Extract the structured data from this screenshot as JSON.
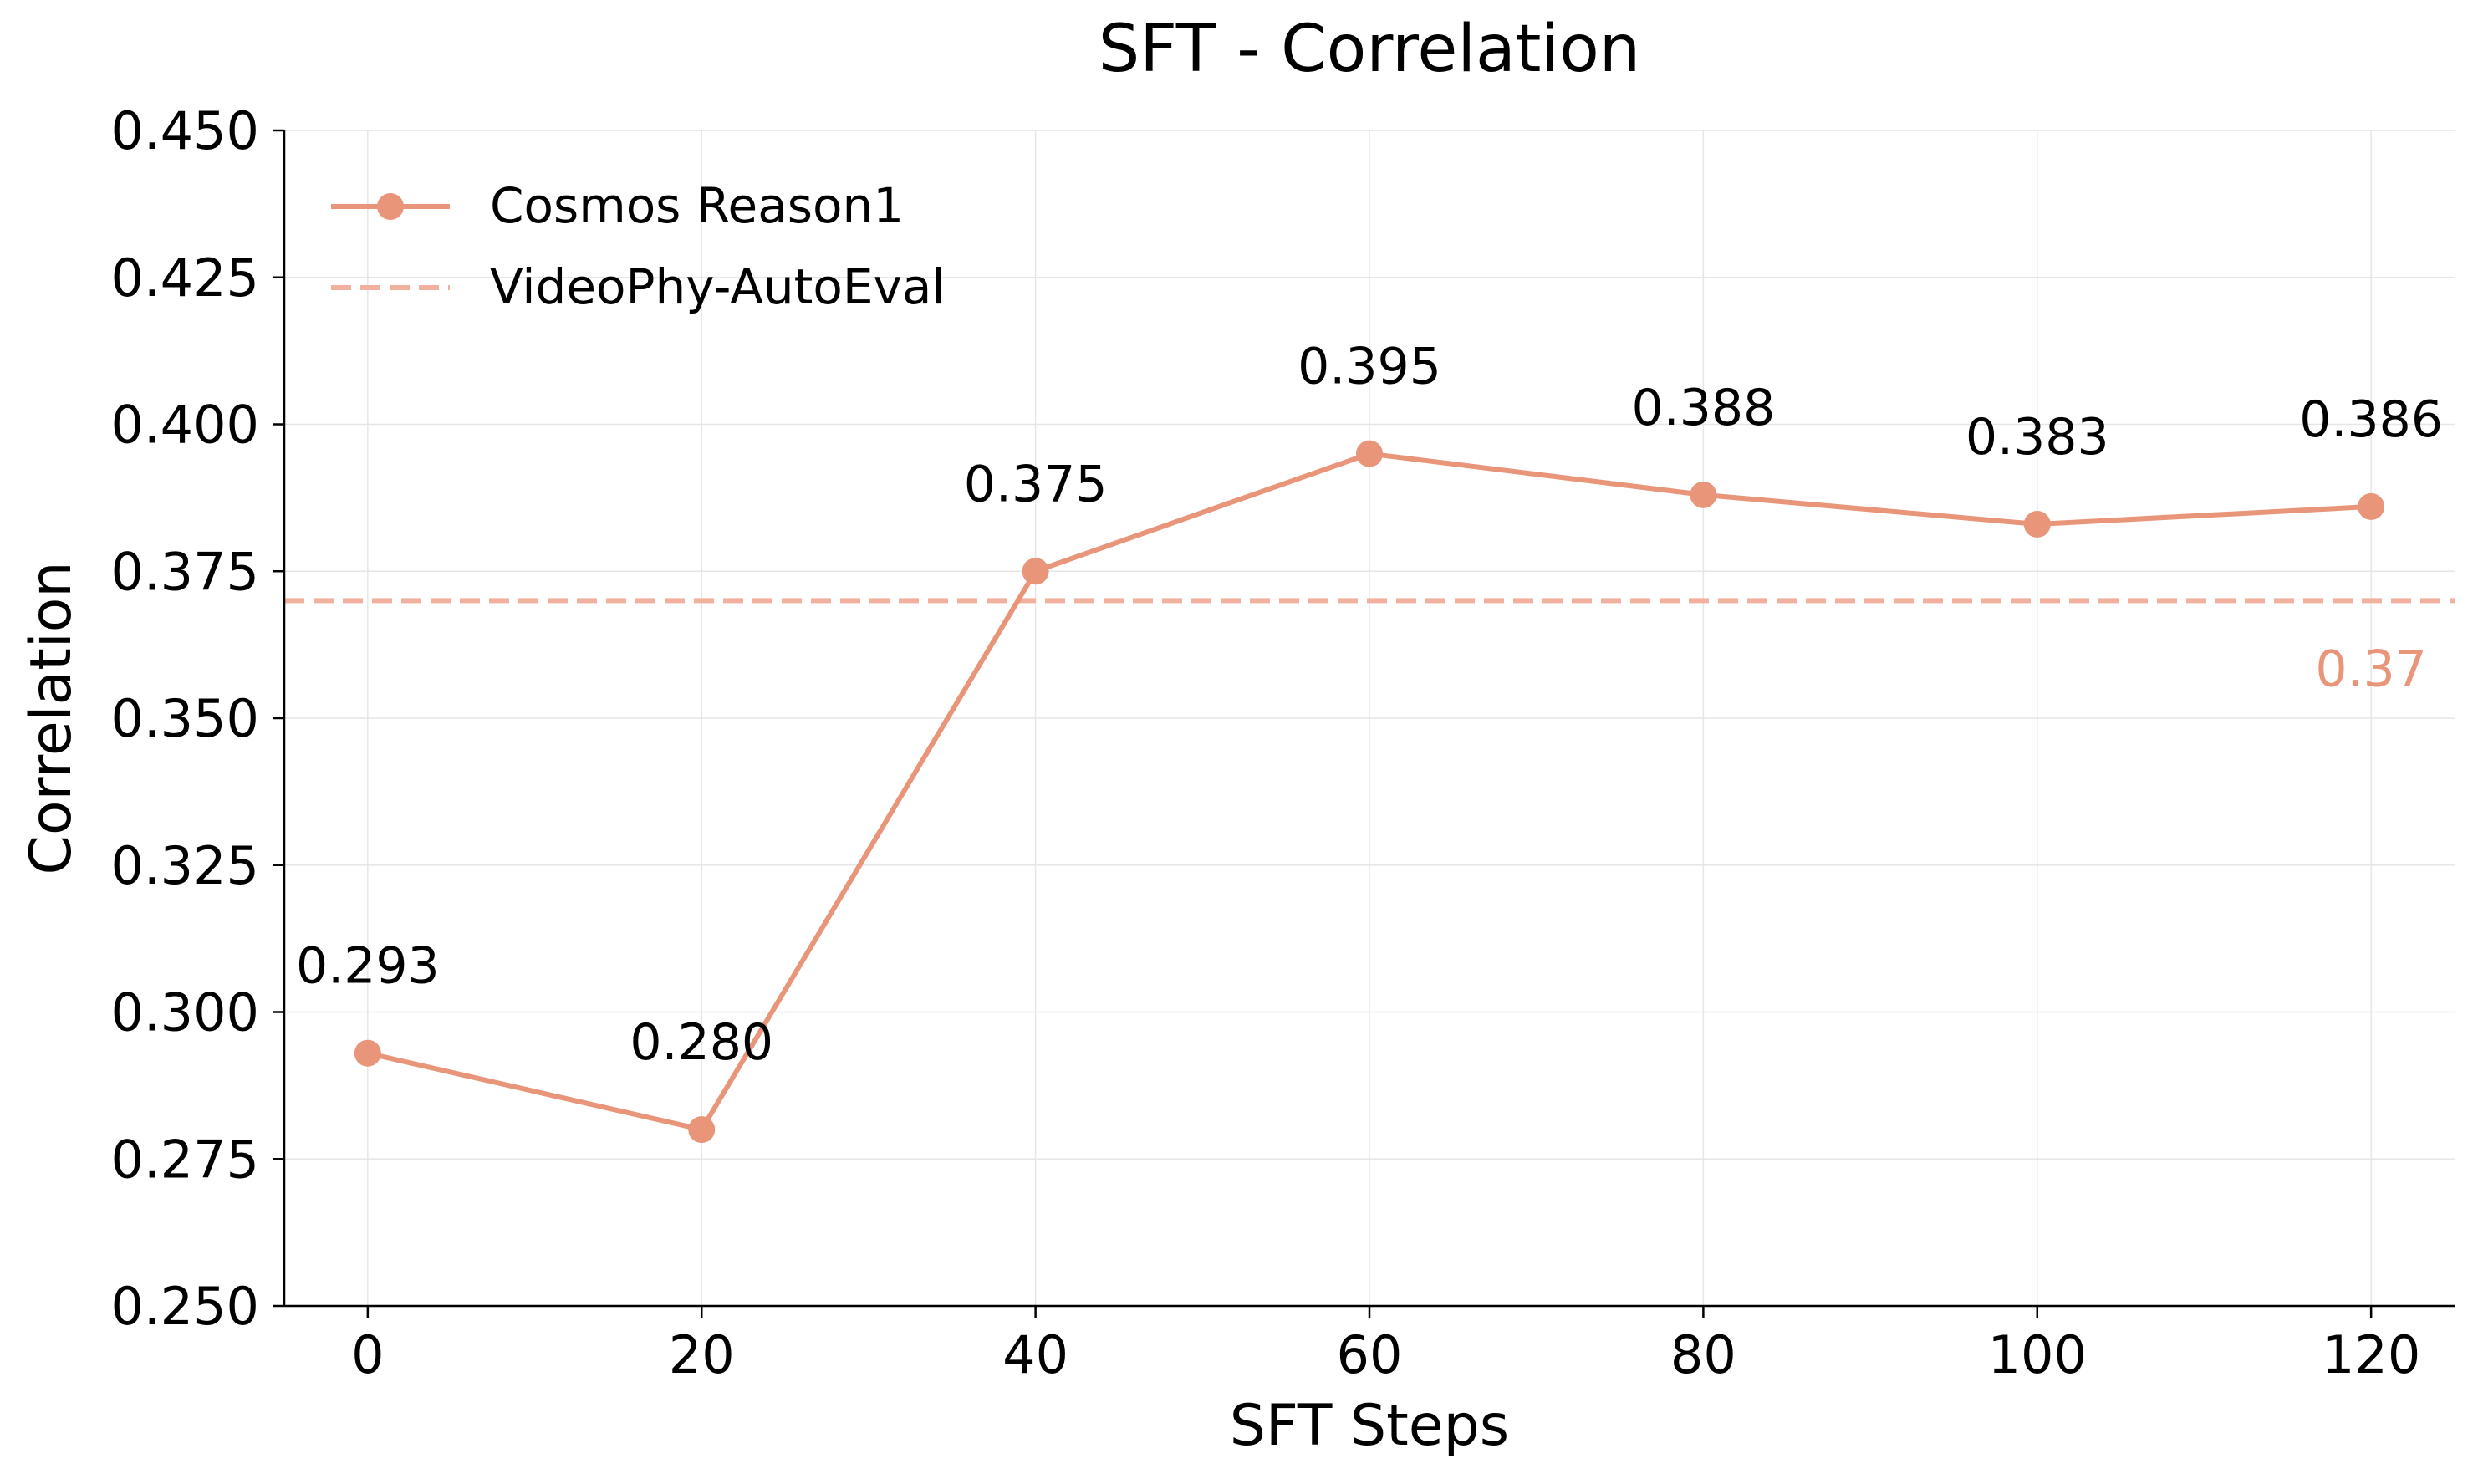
{
  "chart_data": {
    "type": "line",
    "title": "SFT - Correlation",
    "xlabel": "SFT Steps",
    "ylabel": "Correlation",
    "xlim": [
      -5,
      125
    ],
    "ylim": [
      0.25,
      0.45
    ],
    "x_ticks": [
      0,
      20,
      40,
      60,
      80,
      100,
      120
    ],
    "x_tick_labels": [
      "0",
      "20",
      "40",
      "60",
      "80",
      "100",
      "120"
    ],
    "y_ticks": [
      0.25,
      0.275,
      0.3,
      0.325,
      0.35,
      0.375,
      0.4,
      0.425,
      0.45
    ],
    "y_tick_labels": [
      "0.250",
      "0.275",
      "0.300",
      "0.325",
      "0.350",
      "0.375",
      "0.400",
      "0.425",
      "0.450"
    ],
    "grid": true,
    "legend_position": "top-left",
    "series": [
      {
        "name": "Cosmos Reason1",
        "style": "solid-line-with-markers",
        "color": "#E8957A",
        "x": [
          0,
          20,
          40,
          60,
          80,
          100,
          120
        ],
        "values": [
          0.293,
          0.28,
          0.375,
          0.395,
          0.388,
          0.383,
          0.386
        ],
        "labels": [
          "0.293",
          "0.280",
          "0.375",
          "0.395",
          "0.388",
          "0.383",
          "0.386"
        ]
      }
    ],
    "reference_lines": [
      {
        "name": "VideoPhy-AutoEval",
        "style": "dashed",
        "color": "#F2B19E",
        "value": 0.37,
        "label": "0.37",
        "label_color": "#E8957A"
      }
    ]
  }
}
